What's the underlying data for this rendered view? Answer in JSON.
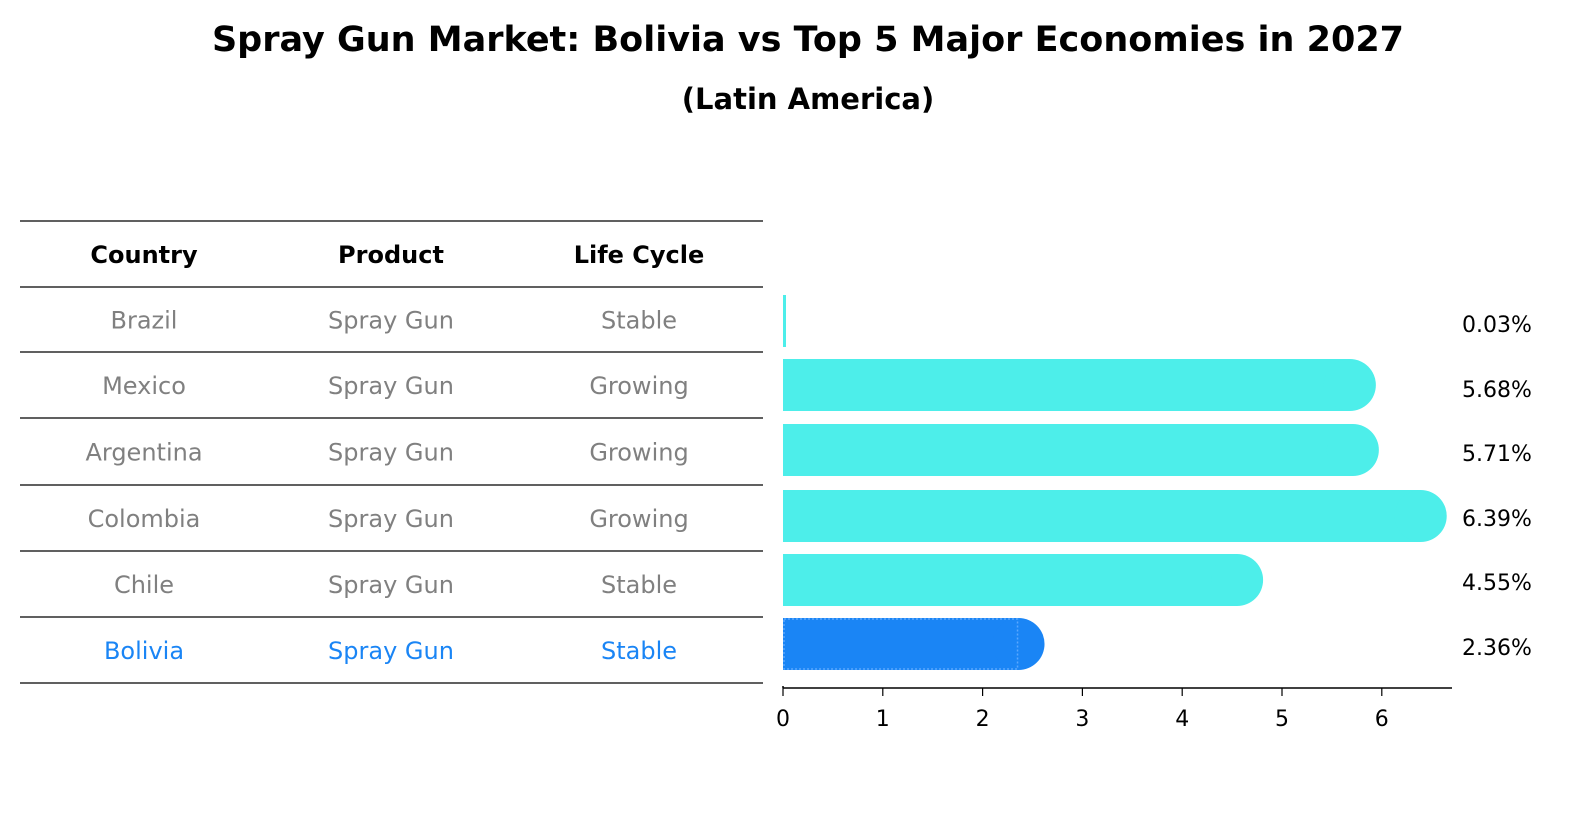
{
  "chart_data": {
    "type": "bar",
    "orientation": "horizontal",
    "title": "Spray Gun Market: Bolivia vs Top 5 Major Economies in 2027",
    "subtitle": "(Latin America)",
    "table": {
      "headers": [
        "Country",
        "Product",
        "Life Cycle"
      ],
      "rows": [
        [
          "Brazil",
          "Spray Gun",
          "Stable"
        ],
        [
          "Mexico",
          "Spray Gun",
          "Growing"
        ],
        [
          "Argentina",
          "Spray Gun",
          "Growing"
        ],
        [
          "Colombia",
          "Spray Gun",
          "Growing"
        ],
        [
          "Chile",
          "Spray Gun",
          "Stable"
        ],
        [
          "Bolivia",
          "Spray Gun",
          "Stable"
        ]
      ],
      "highlight_row": 5
    },
    "categories": [
      "Brazil",
      "Mexico",
      "Argentina",
      "Colombia",
      "Chile",
      "Bolivia"
    ],
    "values": [
      0.03,
      5.68,
      5.71,
      6.39,
      4.55,
      2.36
    ],
    "value_labels": [
      "0.03%",
      "5.68%",
      "5.71%",
      "6.39%",
      "4.55%",
      "2.36%"
    ],
    "xlim": [
      0,
      6.7
    ],
    "xticks": [
      0,
      1,
      2,
      3,
      4,
      5,
      6
    ],
    "grid": false,
    "colors": {
      "bar": "#4deeea",
      "highlight_bar": "#1a85f5",
      "text_normal": "#808080",
      "text_highlight": "#1a85f5",
      "rule": "#000000"
    }
  }
}
